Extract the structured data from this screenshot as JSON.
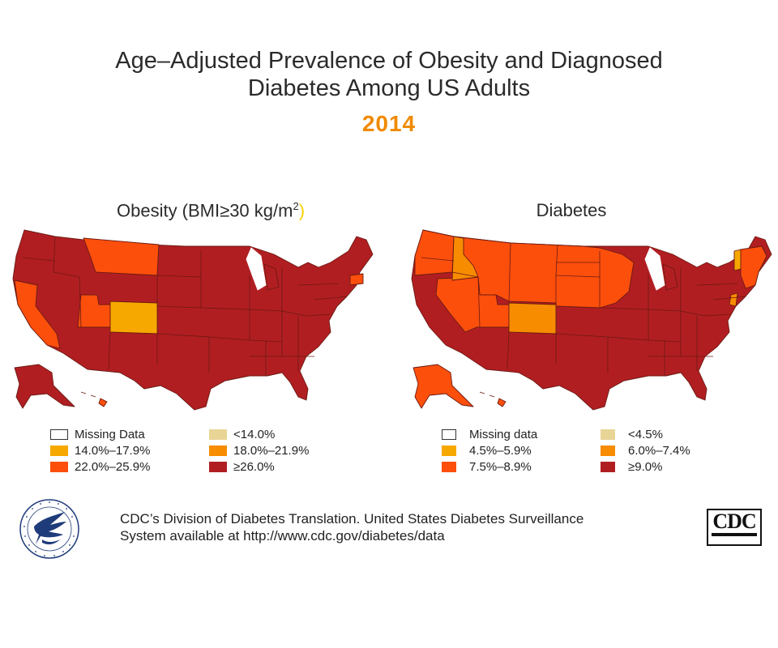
{
  "title_line1": "Age–Adjusted Prevalence of Obesity and Diagnosed",
  "title_line2": "Diabetes Among US Adults",
  "year": "2014",
  "maps": {
    "obesity": {
      "title": "Obesity (BMI≥30 kg/m",
      "title_sup": "2",
      "title_close": ")",
      "legend": [
        {
          "label": "Missing Data",
          "color": "#ffffff"
        },
        {
          "label": "<14.0%",
          "color": "#e8d596"
        },
        {
          "label": "14.0%–17.9%",
          "color": "#f7a800"
        },
        {
          "label": "18.0%–21.9%",
          "color": "#f78c00"
        },
        {
          "label": "22.0%–25.9%",
          "color": "#fc4f0c"
        },
        {
          "label": "≥26.0%",
          "color": "#b11e22"
        }
      ]
    },
    "diabetes": {
      "title": "Diabetes",
      "legend": [
        {
          "label": "Missing data",
          "color": "#ffffff"
        },
        {
          "label": "<4.5%",
          "color": "#e8d596"
        },
        {
          "label": "4.5%–5.9%",
          "color": "#f7a800"
        },
        {
          "label": "6.0%–7.4%",
          "color": "#f78c00"
        },
        {
          "label": "7.5%–8.9%",
          "color": "#fc4f0c"
        },
        {
          "label": "≥9.0%",
          "color": "#b11e22"
        }
      ]
    }
  },
  "footer_line1": "CDC’s Division of Diabetes Translation. United States Diabetes Surveillance",
  "footer_line2": "System available at http://www.cdc.gov/diabetes/data",
  "cdc_logo_text": "CDC",
  "colors": {
    "dark_red": "#b11e22",
    "red_orange": "#fc4f0c",
    "orange": "#f78c00",
    "light_orange": "#f7a800",
    "border": "#6b1a12"
  }
}
